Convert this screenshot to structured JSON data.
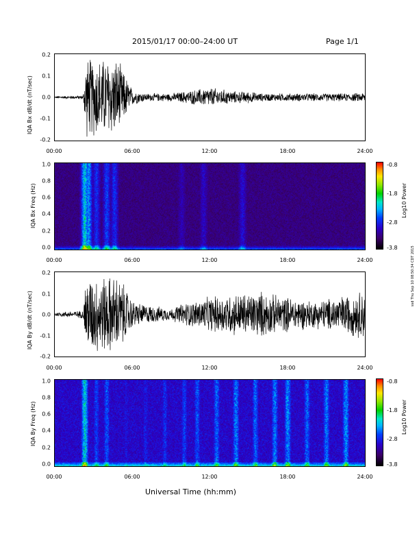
{
  "header": {
    "title": "2015/01/17  00:00–24:00 UT",
    "page": "Page 1/1"
  },
  "side_stamp": "ssd Thu Sep 10 08:50:34 CDT 2015",
  "xlabel": "Universal Time (hh:mm)",
  "x_ticks": [
    "00:00",
    "06:00",
    "12:00",
    "18:00",
    "24:00"
  ],
  "panels": [
    {
      "type": "line",
      "ylabel": "IQA Bx dB/dt (nT/sec)",
      "y_ticks": [
        "0.2",
        "0.1",
        "0.0",
        "-0.1",
        "-0.2"
      ]
    },
    {
      "type": "heatmap",
      "ylabel": "IQA Bx Freq (Hz)",
      "y_ticks": [
        "1.0",
        "0.8",
        "0.6",
        "0.4",
        "0.2",
        "0.0"
      ],
      "colorbar": {
        "label": "Log10 Power",
        "ticks": [
          "-0.8",
          "-1.8",
          "-2.8",
          "-3.8"
        ]
      }
    },
    {
      "type": "line",
      "ylabel": "IQA By dB/dt (nT/sec)",
      "y_ticks": [
        "0.2",
        "0.1",
        "0.0",
        "-0.1",
        "-0.2"
      ]
    },
    {
      "type": "heatmap",
      "ylabel": "IQA By Freq (Hz)",
      "y_ticks": [
        "1.0",
        "0.8",
        "0.6",
        "0.4",
        "0.2",
        "0.0"
      ],
      "colorbar": {
        "label": "Log10 Power",
        "ticks": [
          "-0.8",
          "-1.8",
          "-2.8",
          "-3.8"
        ]
      }
    }
  ],
  "chart_data": [
    {
      "type": "line",
      "series": [
        {
          "name": "IQA Bx dB/dt",
          "x_hours": [
            0,
            2.2,
            2.4,
            3.0,
            3.6,
            4.2,
            4.8,
            5.4,
            6.0,
            7.0,
            8.0,
            9.0,
            10.0,
            11.0,
            12.0,
            13.0,
            14.0,
            15.0,
            16.0,
            17.0,
            18.0,
            19.0,
            20.0,
            21.0,
            22.0,
            23.0,
            24.0
          ],
          "amplitude": [
            0.005,
            0.01,
            0.2,
            0.2,
            0.2,
            0.2,
            0.2,
            0.12,
            0.04,
            0.02,
            0.02,
            0.02,
            0.03,
            0.04,
            0.05,
            0.04,
            0.03,
            0.03,
            0.02,
            0.02,
            0.02,
            0.02,
            0.02,
            0.02,
            0.02,
            0.02,
            0.025
          ]
        }
      ],
      "xlim": [
        0,
        24
      ],
      "ylim": [
        -0.2,
        0.2
      ]
    },
    {
      "type": "heatmap",
      "xlim": [
        0,
        24
      ],
      "ylim": [
        0,
        1.0
      ],
      "zlim": [
        -3.8,
        -0.8
      ],
      "activity_hours": [
        2.3,
        2.6,
        3.2,
        4.0,
        4.6,
        9.8,
        11.5,
        14.5
      ],
      "activity_level": [
        0.9,
        0.7,
        0.45,
        0.5,
        0.45,
        0.2,
        0.25,
        0.3
      ]
    },
    {
      "type": "line",
      "series": [
        {
          "name": "IQA By dB/dt",
          "x_hours": [
            0,
            2.2,
            2.4,
            3.0,
            3.6,
            4.2,
            4.8,
            5.4,
            6.0,
            7.0,
            8.0,
            9.0,
            10.0,
            11.0,
            12.0,
            13.0,
            14.0,
            15.0,
            16.0,
            17.0,
            18.0,
            19.0,
            20.0,
            21.0,
            22.0,
            23.0,
            24.0
          ],
          "amplitude": [
            0.01,
            0.02,
            0.2,
            0.2,
            0.2,
            0.2,
            0.2,
            0.15,
            0.07,
            0.05,
            0.04,
            0.03,
            0.06,
            0.07,
            0.09,
            0.1,
            0.11,
            0.11,
            0.12,
            0.1,
            0.09,
            0.08,
            0.07,
            0.08,
            0.09,
            0.11,
            0.13
          ]
        }
      ],
      "xlim": [
        0,
        24
      ],
      "ylim": [
        -0.2,
        0.2
      ]
    },
    {
      "type": "heatmap",
      "xlim": [
        0,
        24
      ],
      "ylim": [
        0,
        1.0
      ],
      "zlim": [
        -3.8,
        -0.8
      ],
      "activity_hours": [
        2.3,
        3.2,
        4.0,
        5.5,
        7.0,
        8.5,
        10.0,
        11.0,
        12.5,
        14.0,
        15.5,
        17.0,
        18.0,
        19.5,
        21.0,
        22.5
      ],
      "activity_level": [
        0.9,
        0.5,
        0.55,
        0.35,
        0.4,
        0.45,
        0.5,
        0.55,
        0.6,
        0.65,
        0.6,
        0.65,
        0.7,
        0.6,
        0.65,
        0.7
      ]
    }
  ]
}
